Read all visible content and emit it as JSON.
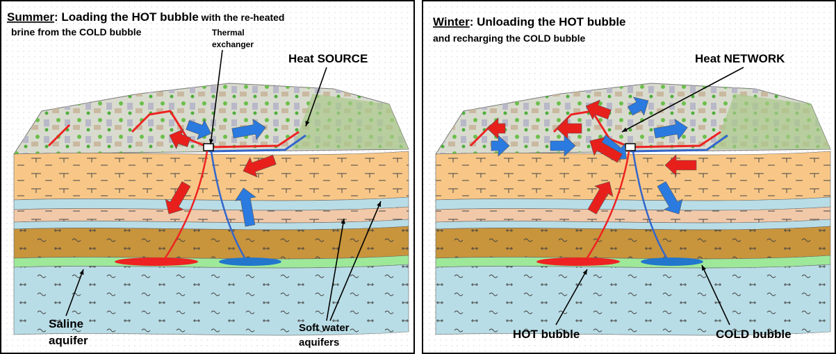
{
  "panels": [
    {
      "season": "Summer",
      "title": ": Loading the HOT bubble",
      "title_small": " with the re-heated",
      "subtitle": "brine from the COLD bubble",
      "labels": [
        {
          "lines": [
            "Thermal",
            "exchanger"
          ]
        },
        {
          "lines": [
            "Heat SOURCE"
          ]
        },
        {
          "lines": [
            "Saline",
            "aquifer"
          ]
        },
        {
          "lines": [
            "Soft water",
            "aquifers"
          ]
        }
      ]
    },
    {
      "season": "Winter",
      "title": ": Unloading the HOT bubble",
      "subtitle": "and recharging the COLD bubble",
      "labels": [
        {
          "lines": [
            "Heat NETWORK"
          ]
        },
        {
          "lines": [
            "HOT bubble"
          ]
        },
        {
          "lines": [
            "COLD bubble"
          ]
        }
      ]
    }
  ]
}
